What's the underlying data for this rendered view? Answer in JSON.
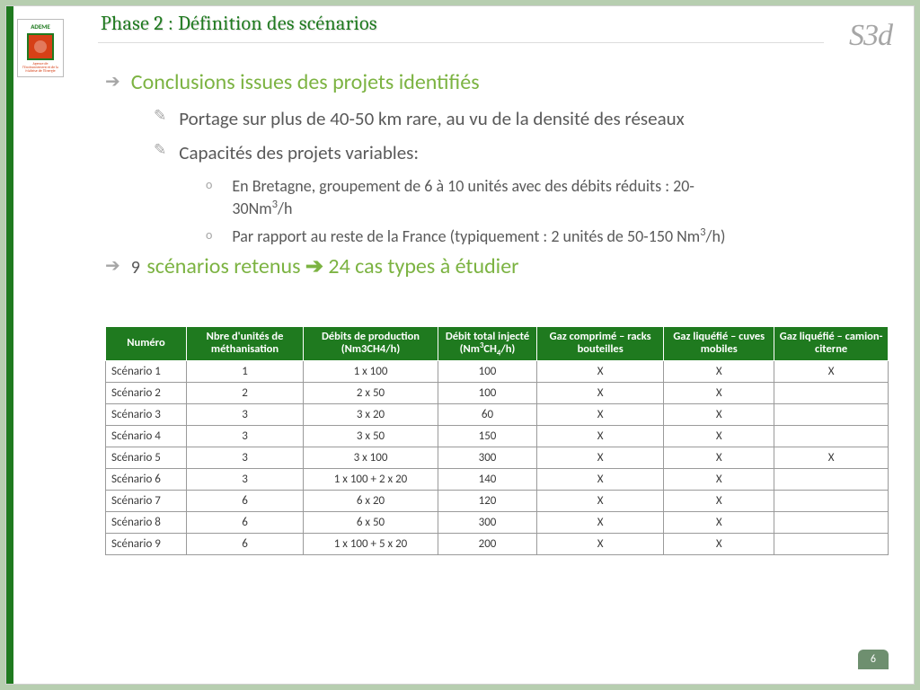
{
  "title": "Phase 2 : Définition des scénarios",
  "logoRight": "S3d",
  "ademe": {
    "top": "ADEME",
    "bottom": "Agence de l'Environnement et de la Maîtrise de l'Energie"
  },
  "colors": {
    "accent_green": "#7cb342",
    "dark_green": "#1f7a1f",
    "grey_text": "#595959",
    "light_grey": "#a6a6a6",
    "table_border": "#9a9a9a"
  },
  "content": {
    "conclusions_title": "Conclusions issues des projets identifiés",
    "bullet_portage": "Portage sur plus de 40-50 km rare, au vu de la densité des réseaux",
    "bullet_capacites": "Capacités des projets variables:",
    "sub_bretagne_a": "En Bretagne, groupement de 6 à 10 unités avec des débits réduits : 20-",
    "sub_bretagne_b": "30Nm",
    "sub_bretagne_c": "/h",
    "sub_france_a": "Par rapport au reste de la France (typiquement : 2 unités de 50-150 Nm",
    "sub_france_b": "/h)",
    "scenarios_nine": "9",
    "scenarios_rest": " scénarios retenus ",
    "scenarios_arrow_then": " 24 cas types à étudier"
  },
  "table": {
    "headers": [
      "Numéro",
      "Nbre d'unités de méthanisation",
      "Débits de production (Nm3CH4/h)",
      "Débit total injecté",
      "(Nm",
      "CH",
      "/h)",
      "Gaz comprimé – racks bouteilles",
      "Gaz liquéfié – cuves mobiles",
      "Gaz liquéfié – camion-citerne"
    ],
    "rows": [
      {
        "num": "Scénario 1",
        "units": "1",
        "debit": "1 x 100",
        "total": "100",
        "g1": "X",
        "g2": "X",
        "g3": "X"
      },
      {
        "num": "Scénario 2",
        "units": "2",
        "debit": "2 x 50",
        "total": "100",
        "g1": "X",
        "g2": "X",
        "g3": ""
      },
      {
        "num": "Scénario 3",
        "units": "3",
        "debit": "3 x 20",
        "total": "60",
        "g1": "X",
        "g2": "X",
        "g3": ""
      },
      {
        "num": "Scénario 4",
        "units": "3",
        "debit": "3 x 50",
        "total": "150",
        "g1": "X",
        "g2": "X",
        "g3": ""
      },
      {
        "num": "Scénario 5",
        "units": "3",
        "debit": "3 x 100",
        "total": "300",
        "g1": "X",
        "g2": "X",
        "g3": "X"
      },
      {
        "num": "Scénario 6",
        "units": "3",
        "debit": "1 x 100 + 2 x 20",
        "total": "140",
        "g1": "X",
        "g2": "X",
        "g3": ""
      },
      {
        "num": "Scénario 7",
        "units": "6",
        "debit": "6 x 20",
        "total": "120",
        "g1": "X",
        "g2": "X",
        "g3": ""
      },
      {
        "num": "Scénario 8",
        "units": "6",
        "debit": "6 x 50",
        "total": "300",
        "g1": "X",
        "g2": "X",
        "g3": ""
      },
      {
        "num": "Scénario 9",
        "units": "6",
        "debit": "1 x 100 + 5 x 20",
        "total": "200",
        "g1": "X",
        "g2": "X",
        "g3": ""
      }
    ]
  },
  "pageNumber": "6"
}
